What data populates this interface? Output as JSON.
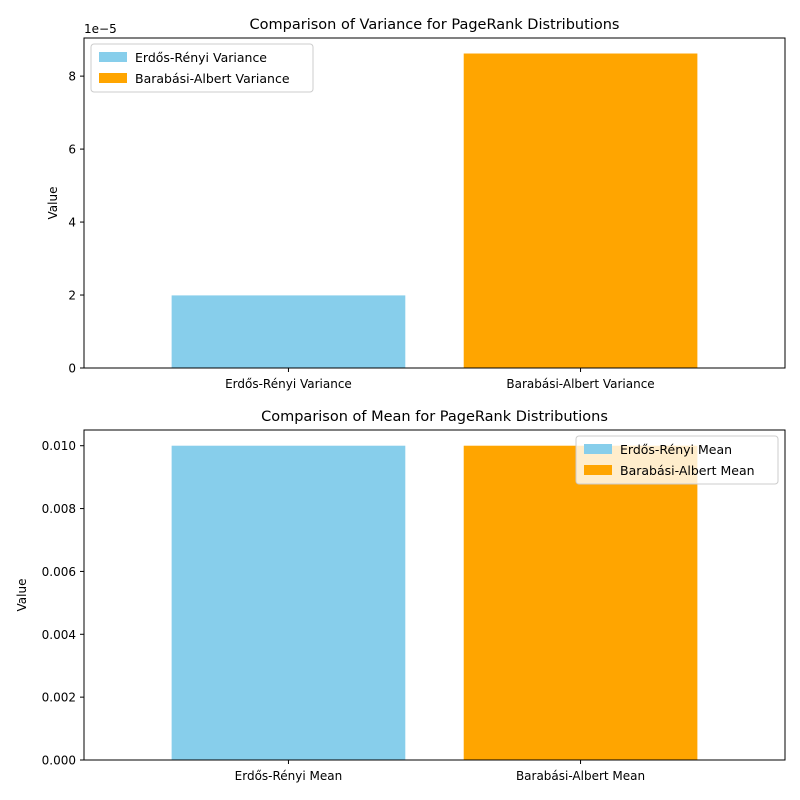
{
  "colors": {
    "er": "#87ceeb",
    "ba": "#ffa500"
  },
  "chart_data": [
    {
      "type": "bar",
      "title": "Comparison of Variance for PageRank Distributions",
      "xlabel": "",
      "ylabel": "Value",
      "scale_label": "1e−5",
      "categories": [
        "Erdős-Rényi Variance",
        "Barabási-Albert Variance"
      ],
      "values": [
        1.99e-05,
        8.62e-05
      ],
      "ylim": [
        0,
        9.045e-05
      ],
      "yticks": [
        0,
        2e-05,
        4e-05,
        6e-05,
        8e-05
      ],
      "ytick_labels": [
        "0",
        "2",
        "4",
        "6",
        "8"
      ],
      "legend": [
        "Erdős-Rényi Variance",
        "Barabási-Albert Variance"
      ],
      "legend_position": "upper left",
      "grid": false
    },
    {
      "type": "bar",
      "title": "Comparison of Mean for PageRank Distributions",
      "xlabel": "",
      "ylabel": "Value",
      "categories": [
        "Erdős-Rényi Mean",
        "Barabási-Albert Mean"
      ],
      "values": [
        0.01,
        0.01
      ],
      "ylim": [
        0,
        0.0105
      ],
      "yticks": [
        0,
        0.002,
        0.004,
        0.006,
        0.008,
        0.01
      ],
      "ytick_labels": [
        "0.000",
        "0.002",
        "0.004",
        "0.006",
        "0.008",
        "0.010"
      ],
      "legend": [
        "Erdős-Rényi Mean",
        "Barabási-Albert Mean"
      ],
      "legend_position": "upper right",
      "grid": false
    }
  ]
}
